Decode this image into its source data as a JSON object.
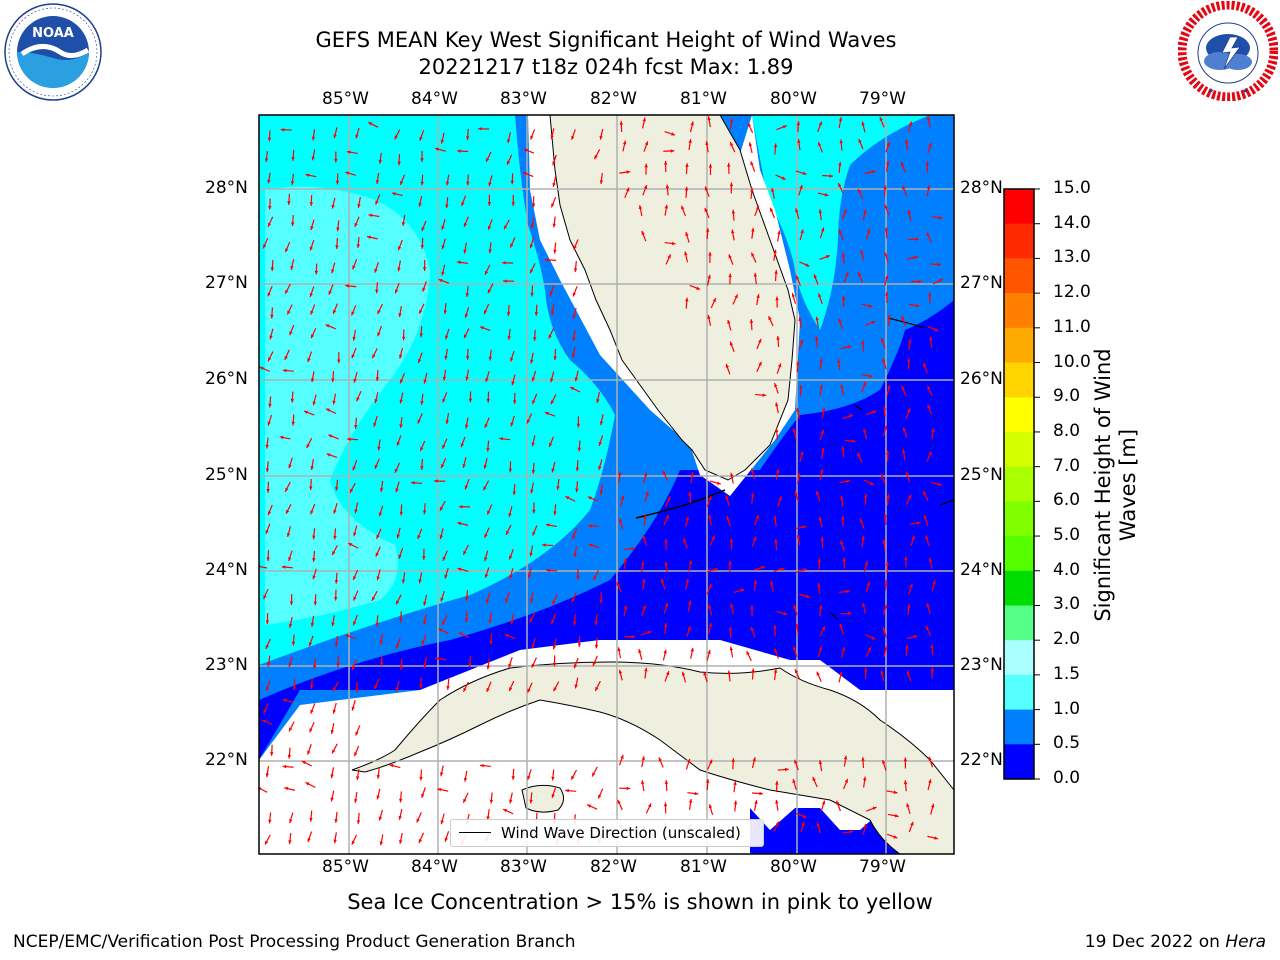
{
  "title": {
    "line1": "GEFS MEAN Key West Significant Height of Wind Waves",
    "line2": "20221217 t18z 024h fcst   Max: 1.89"
  },
  "logos": {
    "left": {
      "name": "noaa-logo",
      "text": "NOAA",
      "ring_text": "NATIONAL OCEANIC AND ATMOSPHERIC ADMINISTRATION · U.S. DEPARTMENT OF COMMERCE",
      "color": "#1f3f8f"
    },
    "right": {
      "name": "nws-logo",
      "ring_text": "NATIONAL WEATHER SERVICE",
      "color": "#e30613"
    }
  },
  "map": {
    "lon_labels": [
      "85°W",
      "84°W",
      "83°W",
      "82°W",
      "81°W",
      "80°W",
      "79°W"
    ],
    "lat_labels": [
      "28°N",
      "27°N",
      "26°N",
      "25°N",
      "24°N",
      "23°N",
      "22°N"
    ],
    "land_color": "#efefdf",
    "arrow_color": "#ff0000",
    "legend_label": "Wind Wave Direction (unscaled)"
  },
  "colorbar": {
    "title_line1": "Significant Height of Wind",
    "title_line2": "Waves [m]",
    "ticks": [
      "15.0",
      "14.0",
      "13.0",
      "12.0",
      "11.0",
      "10.0",
      "9.0",
      "8.0",
      "7.0",
      "6.0",
      "5.0",
      "4.0",
      "3.0",
      "2.0",
      "1.5",
      "1.0",
      "0.5",
      "0.0"
    ],
    "colors": [
      "#ff0000",
      "#ff2a00",
      "#ff5500",
      "#ff7f00",
      "#ffaa00",
      "#ffd400",
      "#ffff00",
      "#d4ff00",
      "#aaff00",
      "#7fff00",
      "#55ff00",
      "#00dd00",
      "#55ff88",
      "#aaffff",
      "#55ffff",
      "#00ffff",
      "#0080ff",
      "#0000ff"
    ]
  },
  "note": "Sea Ice Concentration > 15% is shown in pink to yellow",
  "footer": {
    "left": "NCEP/EMC/Verification Post Processing Product Generation Branch",
    "right_prefix": "19 Dec 2022 on ",
    "right_host": "Hera"
  }
}
